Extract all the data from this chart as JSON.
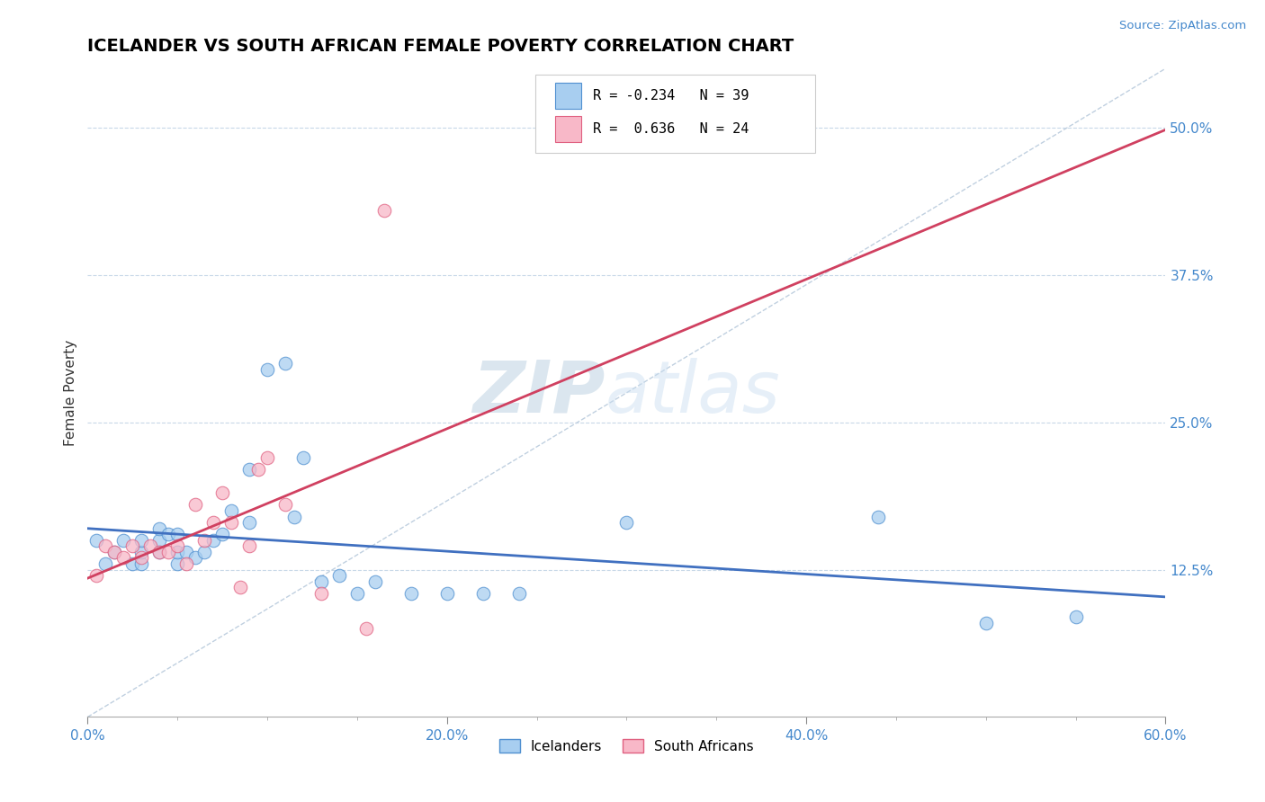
{
  "title": "ICELANDER VS SOUTH AFRICAN FEMALE POVERTY CORRELATION CHART",
  "source": "Source: ZipAtlas.com",
  "ylabel": "Female Poverty",
  "xlim": [
    0.0,
    0.6
  ],
  "ylim": [
    0.0,
    0.55
  ],
  "xtick_labels": [
    "0.0%",
    "20.0%",
    "40.0%",
    "60.0%"
  ],
  "xtick_vals": [
    0.0,
    0.2,
    0.4,
    0.6
  ],
  "ytick_labels": [
    "12.5%",
    "25.0%",
    "37.5%",
    "50.0%"
  ],
  "ytick_vals": [
    0.125,
    0.25,
    0.375,
    0.5
  ],
  "r_icelander": -0.234,
  "n_icelander": 39,
  "r_south_african": 0.636,
  "n_south_african": 24,
  "icelander_color": "#a8cef0",
  "south_african_color": "#f8b8c8",
  "icelander_edge_color": "#5090d0",
  "south_african_edge_color": "#e06080",
  "icelander_line_color": "#4070c0",
  "south_african_line_color": "#d04060",
  "diagonal_color": "#c0d0e0",
  "watermark_zip": "ZIP",
  "watermark_atlas": "atlas",
  "legend_label_icelander": "Icelanders",
  "legend_label_south_african": "South Africans",
  "icelander_x": [
    0.005,
    0.01,
    0.015,
    0.02,
    0.025,
    0.03,
    0.03,
    0.03,
    0.04,
    0.04,
    0.04,
    0.045,
    0.05,
    0.05,
    0.05,
    0.055,
    0.06,
    0.065,
    0.07,
    0.075,
    0.08,
    0.09,
    0.09,
    0.1,
    0.11,
    0.115,
    0.12,
    0.13,
    0.14,
    0.15,
    0.16,
    0.18,
    0.2,
    0.22,
    0.24,
    0.3,
    0.44,
    0.5,
    0.55
  ],
  "icelander_y": [
    0.15,
    0.13,
    0.14,
    0.15,
    0.13,
    0.13,
    0.14,
    0.15,
    0.14,
    0.15,
    0.16,
    0.155,
    0.13,
    0.14,
    0.155,
    0.14,
    0.135,
    0.14,
    0.15,
    0.155,
    0.175,
    0.165,
    0.21,
    0.295,
    0.3,
    0.17,
    0.22,
    0.115,
    0.12,
    0.105,
    0.115,
    0.105,
    0.105,
    0.105,
    0.105,
    0.165,
    0.17,
    0.08,
    0.085
  ],
  "south_african_x": [
    0.005,
    0.01,
    0.015,
    0.02,
    0.025,
    0.03,
    0.035,
    0.04,
    0.045,
    0.05,
    0.055,
    0.06,
    0.065,
    0.07,
    0.075,
    0.08,
    0.085,
    0.09,
    0.095,
    0.1,
    0.11,
    0.13,
    0.155,
    0.165
  ],
  "south_african_y": [
    0.12,
    0.145,
    0.14,
    0.135,
    0.145,
    0.135,
    0.145,
    0.14,
    0.14,
    0.145,
    0.13,
    0.18,
    0.15,
    0.165,
    0.19,
    0.165,
    0.11,
    0.145,
    0.21,
    0.22,
    0.18,
    0.105,
    0.075,
    0.43
  ]
}
